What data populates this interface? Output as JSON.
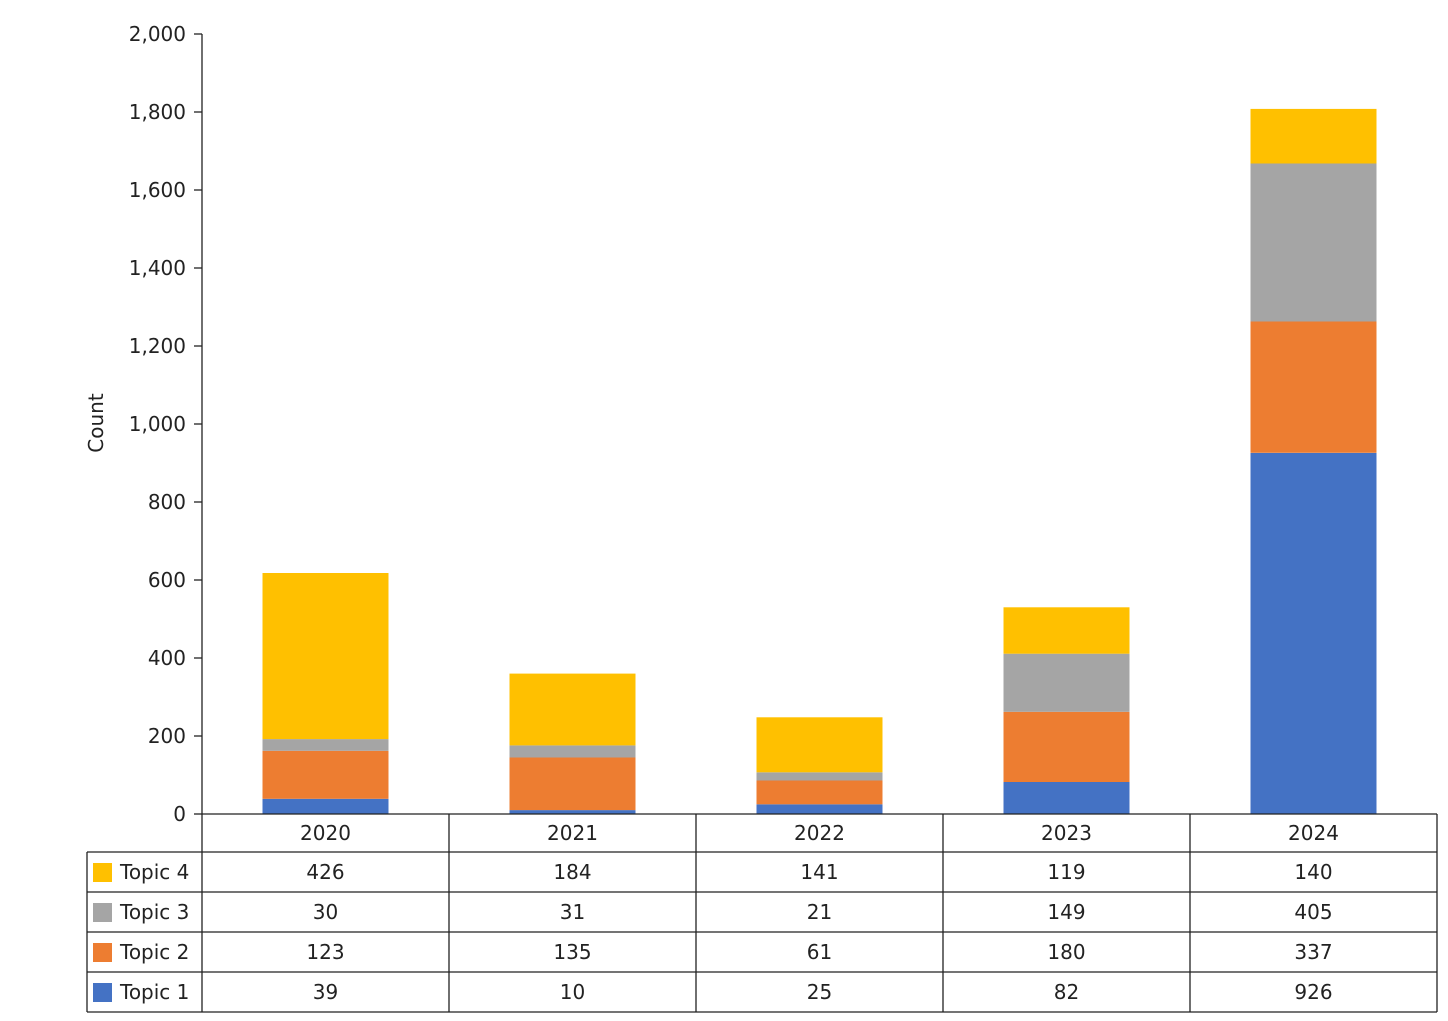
{
  "chart_data": {
    "type": "bar",
    "stacked": true,
    "categories": [
      "2020",
      "2021",
      "2022",
      "2023",
      "2024"
    ],
    "series": [
      {
        "name": "Topic 1",
        "color": "#4472C4",
        "values": [
          39,
          10,
          25,
          82,
          926
        ]
      },
      {
        "name": "Topic 2",
        "color": "#ED7D31",
        "values": [
          123,
          135,
          61,
          180,
          337
        ]
      },
      {
        "name": "Topic 3",
        "color": "#A5A5A5",
        "values": [
          30,
          31,
          21,
          149,
          405
        ]
      },
      {
        "name": "Topic 4",
        "color": "#FFC000",
        "values": [
          426,
          184,
          141,
          119,
          140
        ]
      }
    ],
    "ylabel": "Count",
    "ylim": [
      0,
      2000
    ],
    "yticks": [
      "0",
      "200",
      "400",
      "600",
      "800",
      "1,000",
      "1,200",
      "1,400",
      "1,600",
      "1,800",
      "2,000"
    ],
    "ytick_values": [
      0,
      200,
      400,
      600,
      800,
      1000,
      1200,
      1400,
      1600,
      1800,
      2000
    ],
    "grid": false,
    "legend": "data-table",
    "table_row_order": [
      "Topic 4",
      "Topic 3",
      "Topic 2",
      "Topic 1"
    ]
  }
}
